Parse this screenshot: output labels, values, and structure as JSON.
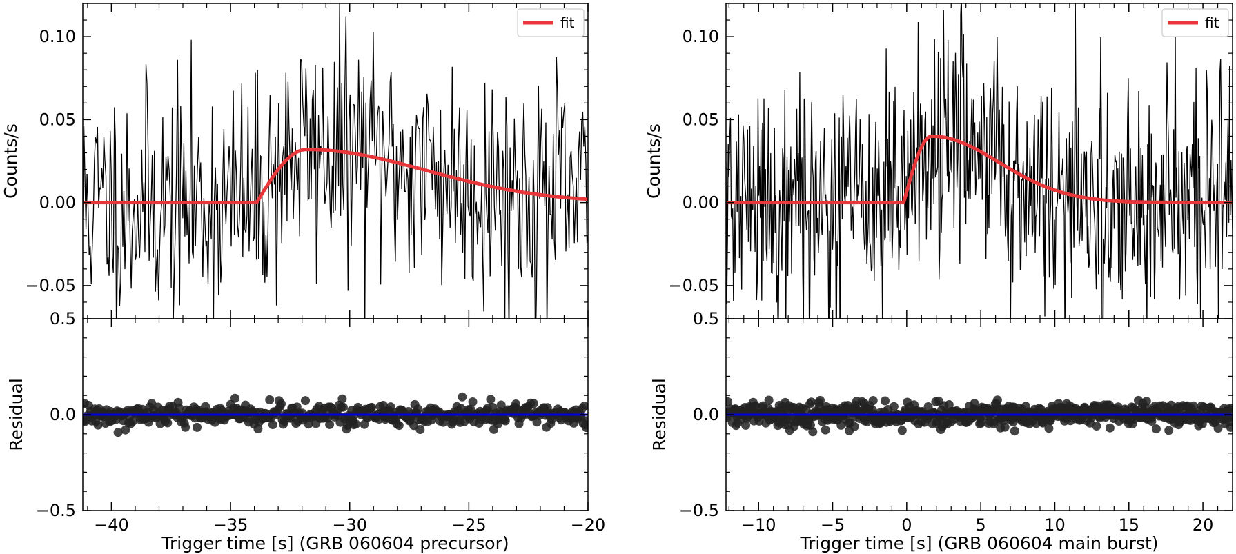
{
  "figure": {
    "panels": [
      {
        "xlabel": "Trigger time [s] (GRB 060604 precursor)",
        "legend_label": "fit",
        "top": {
          "ylabel": "Counts/s"
        },
        "bottom": {
          "ylabel": "Residual"
        }
      },
      {
        "xlabel": "Trigger time [s] (GRB 060604 main burst)",
        "legend_label": "fit",
        "top": {
          "ylabel": "Counts/s"
        },
        "bottom": {
          "ylabel": "Residual"
        }
      }
    ]
  },
  "chart_data": [
    {
      "type": "line",
      "panel": "left-top",
      "xlabel": "",
      "ylabel": "Counts/s",
      "xlim": [
        -41.2,
        -20
      ],
      "ylim": [
        -0.07,
        0.12
      ],
      "yticks": [
        -0.05,
        0.0,
        0.05,
        0.1
      ],
      "ytick_labels": [
        "−0.05",
        "0.00",
        "0.05",
        "0.10"
      ],
      "legend": {
        "position": "top-right",
        "entries": [
          "fit"
        ]
      },
      "colors": {
        "data": "#000000",
        "fit": "#e8373a"
      },
      "series": [
        {
          "name": "",
          "kind": "noisy-lightcurve",
          "n_bins": 480,
          "noise_sigma": 0.036,
          "signal": "same as fit"
        },
        {
          "name": "fit",
          "kind": "FRED pulse",
          "onset": -33.9,
          "peak_time": -31.8,
          "peak_value": 0.032,
          "baseline": 0.0
        }
      ]
    },
    {
      "type": "scatter",
      "panel": "left-bottom",
      "ylabel": "Residual",
      "xlabel": "Trigger time [s] (GRB 060604 precursor)",
      "xlim": [
        -41.2,
        -20
      ],
      "ylim": [
        -0.5,
        0.5
      ],
      "xticks": [
        -40,
        -35,
        -30,
        -25,
        -20
      ],
      "xtick_labels": [
        "−40",
        "−35",
        "−30",
        "−25",
        "−20"
      ],
      "yticks": [
        -0.5,
        0.0,
        0.5
      ],
      "ytick_labels": [
        "−0.5",
        "0.0",
        "0.5"
      ],
      "colors": {
        "points": "#222222",
        "zero_line": "#0000dd"
      },
      "series": [
        {
          "name": "",
          "kind": "residual-points",
          "n_points": 480,
          "spread": 0.03,
          "zero_line": 0.0
        }
      ]
    },
    {
      "type": "line",
      "panel": "right-top",
      "xlabel": "",
      "ylabel": "Counts/s",
      "xlim": [
        -12.2,
        22
      ],
      "ylim": [
        -0.07,
        0.12
      ],
      "yticks": [
        -0.05,
        0.0,
        0.05,
        0.1
      ],
      "ytick_labels": [
        "−0.05",
        "0.00",
        "0.05",
        "0.10"
      ],
      "legend": {
        "position": "top-right",
        "entries": [
          "fit"
        ]
      },
      "colors": {
        "data": "#000000",
        "fit": "#e8373a"
      },
      "series": [
        {
          "name": "",
          "kind": "noisy-lightcurve",
          "n_bins": 680,
          "noise_sigma": 0.036,
          "signal": "same as fit"
        },
        {
          "name": "fit",
          "kind": "FRED pulse",
          "onset": -0.2,
          "peak_time": 1.7,
          "peak_value": 0.04,
          "baseline": 0.0
        }
      ]
    },
    {
      "type": "scatter",
      "panel": "right-bottom",
      "ylabel": "Residual",
      "xlabel": "Trigger time [s] (GRB 060604 main burst)",
      "xlim": [
        -12.2,
        22
      ],
      "ylim": [
        -0.5,
        0.5
      ],
      "xticks": [
        -10,
        -5,
        0,
        5,
        10,
        15,
        20
      ],
      "xtick_labels": [
        "−10",
        "−5",
        "0",
        "5",
        "10",
        "15",
        "20"
      ],
      "yticks": [
        -0.5,
        0.0,
        0.5
      ],
      "ytick_labels": [
        "−0.5",
        "0.0",
        "0.5"
      ],
      "colors": {
        "points": "#222222",
        "zero_line": "#0000dd"
      },
      "series": [
        {
          "name": "",
          "kind": "residual-points",
          "n_points": 680,
          "spread": 0.03,
          "zero_line": 0.0
        }
      ]
    }
  ]
}
